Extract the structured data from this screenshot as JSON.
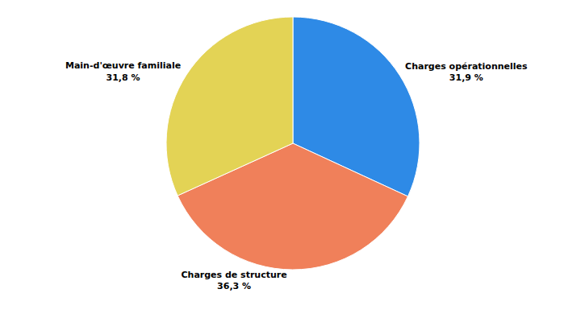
{
  "chart_data": {
    "type": "pie",
    "categories": [
      "Charges opérationnelles",
      "Charges de structure",
      "Main-d'œuvre familiale"
    ],
    "values": [
      31.9,
      36.3,
      31.8
    ],
    "value_labels": [
      "31,9 %",
      "36,3 %",
      "31,8 %"
    ],
    "colors": [
      "#2e8ae6",
      "#f0805a",
      "#e3d355"
    ],
    "data_labels": true
  }
}
